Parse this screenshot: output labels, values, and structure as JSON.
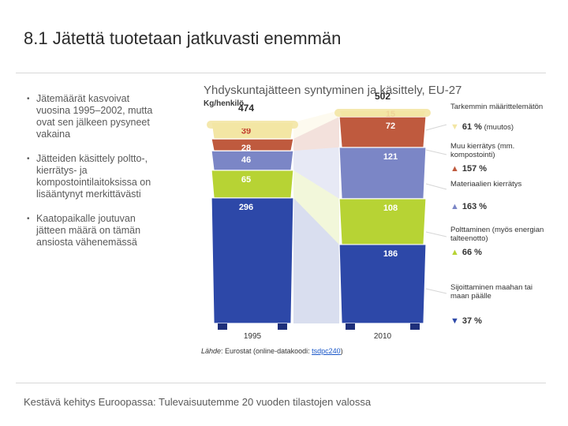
{
  "slide": {
    "title": "8.1 Jätettä tuotetaan jatkuvasti enemmän",
    "bullets": [
      "Jätemäärät kasvoivat vuosina 1995–2002, mutta ovat sen jälkeen pysyneet vakaina",
      "Jätteiden käsittely poltto-, kierrätys- ja kompostointilaitoksissa on lisääntynyt merkittävästi",
      "Kaatopaikalle joutuvan jätteen määrä on tämän ansiosta vähenemässä"
    ],
    "bullet_symbol": "•",
    "source_prefix": "Lähde",
    "source_text": ": Eurostat (online-datakoodi: ",
    "source_code": "tsdpc240",
    "source_suffix": ")",
    "footer": "Kestävä kehitys Euroopassa: Tulevaisuutemme 20 vuoden tilastojen valossa"
  },
  "chart_data": {
    "type": "bar",
    "title": "Yhdyskuntajätteen syntyminen ja käsittely, EU-27",
    "ylabel": "Kg/henkilö",
    "categories": [
      "1995",
      "2010"
    ],
    "totals": [
      474,
      502
    ],
    "series": [
      {
        "name": "Sijoittaminen maahan tai maan päälle",
        "values": [
          296,
          186
        ],
        "color": "#2d48a8",
        "change": "37 %",
        "direction": "down"
      },
      {
        "name": "Polttaminen (myös energian talteenotto)",
        "values": [
          65,
          108
        ],
        "color": "#b7d334",
        "change": "66 %",
        "direction": "up"
      },
      {
        "name": "Materiaalien kierrätys",
        "values": [
          46,
          121
        ],
        "color": "#7b86c6",
        "change": "163 %",
        "direction": "up"
      },
      {
        "name": "Muu kierrätys (mm. kompostointi)",
        "values": [
          28,
          72
        ],
        "color": "#bf5a3e",
        "change": "157 %",
        "direction": "up"
      },
      {
        "name": "Tarkemmin määrittelemätön",
        "values": [
          39,
          15
        ],
        "color": "#f3e6a4",
        "change": "61 %",
        "direction": "down",
        "change_note": "(muutos)"
      }
    ],
    "ylim": [
      0,
      520
    ],
    "legend": "right"
  }
}
